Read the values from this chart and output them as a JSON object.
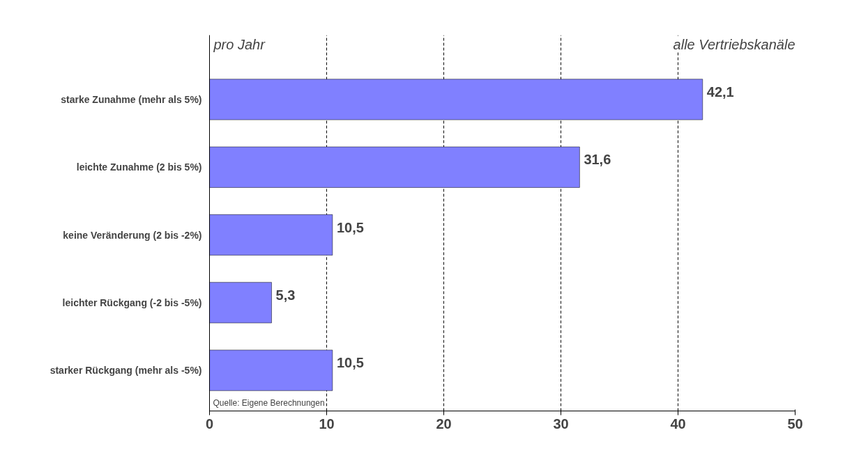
{
  "chart_data": {
    "type": "bar",
    "orientation": "horizontal",
    "categories": [
      "starke Zunahme (mehr als 5%)",
      "leichte Zunahme (2 bis 5%)",
      "keine Veränderung (2 bis -2%)",
      "leichter Rückgang (-2 bis -5%)",
      "starker Rückgang (mehr als -5%)"
    ],
    "values": [
      42.1,
      31.6,
      10.5,
      5.3,
      10.5
    ],
    "value_labels": [
      "42,1",
      "31,6",
      "10,5",
      "5,3",
      "10,5"
    ],
    "color": "#8080ff",
    "xlim": [
      0,
      50
    ],
    "xticks": [
      0,
      10,
      20,
      30,
      40,
      50
    ],
    "grid": "x",
    "annotations": [
      "pro Jahr",
      "alle Vertriebskanäle",
      "Quelle: Eigene Berechnungen"
    ]
  }
}
